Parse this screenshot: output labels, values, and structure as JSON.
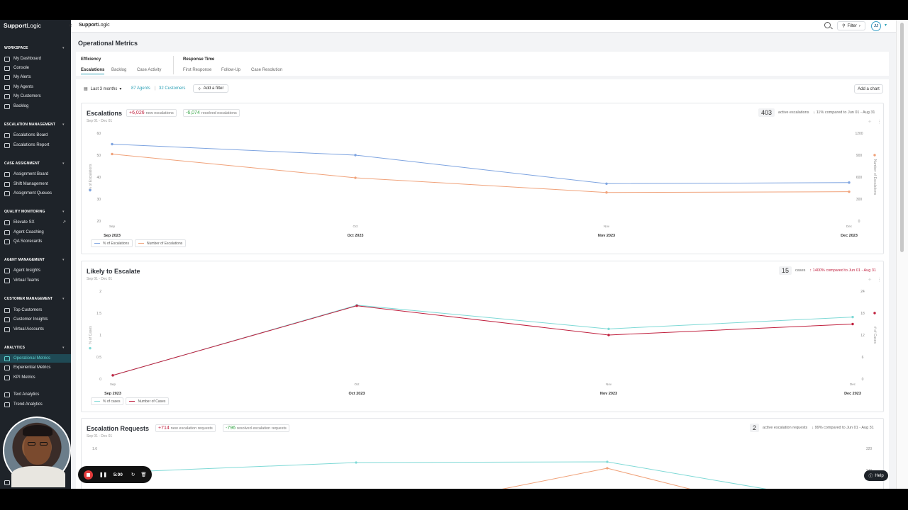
{
  "sidebar": {
    "brand_a": "Support",
    "brand_b": "Logic",
    "sections": [
      {
        "title": "WORKSPACE",
        "items": [
          "My Dashboard",
          "Console",
          "My Alerts",
          "My Agents",
          "My Customers",
          "Backlog"
        ]
      },
      {
        "title": "ESCALATION MANAGEMENT",
        "items": [
          "Escalations Board",
          "Escalations Report"
        ]
      },
      {
        "title": "CASE ASSIGNMENT",
        "items": [
          "Assignment Board",
          "Shift Management",
          "Assignment Queues"
        ]
      },
      {
        "title": "QUALITY MONITORING",
        "items": [
          "Elevate SX",
          "Agent Coaching",
          "QA Scorecards"
        ]
      },
      {
        "title": "AGENT MANAGEMENT",
        "items": [
          "Agent Insights",
          "Virtual Teams"
        ]
      },
      {
        "title": "CUSTOMER MANAGEMENT",
        "items": [
          "Top Customers",
          "Customer Insights",
          "Virtual Accounts"
        ]
      },
      {
        "title": "ANALYTICS",
        "items": [
          "Operational Metrics",
          "Experiential Metrics",
          "KPI Metrics",
          "Text Analytics",
          "Trend Analytics"
        ]
      }
    ],
    "bottom_label": "Co"
  },
  "topbar": {
    "brand_a": "Support",
    "brand_b": "Logic",
    "filter_label": "Filter",
    "avatar": "JJ"
  },
  "page": {
    "title": "Operational Metrics",
    "group_efficiency": "Efficiency",
    "group_response": "Response Time",
    "tabs": [
      "Escalations",
      "Backlog",
      "Case Activity",
      "First Response",
      "Follow-Up",
      "Case Resolution"
    ],
    "range": "Last 3 months",
    "agents": "87 Agents",
    "sep": "|",
    "customers": "32 Customers",
    "add_filter": "Add a filter",
    "add_chart": "Add a chart"
  },
  "charts": [
    {
      "title": "Escalations",
      "subtitle": "Sep 01 - Dec 01",
      "pills": [
        {
          "value": "+6,026",
          "label": "new escalations",
          "tone": "red"
        },
        {
          "value": "-6,074",
          "label": "resolved escalations",
          "tone": "green"
        }
      ],
      "stat_num": "403",
      "stat_label": "active escalations",
      "compare": "↓ 11% compared to Jun 01 - Aug 31",
      "left_axis_label": "% of Escalations",
      "right_axis_label": "Number of Escalations",
      "left_ticks": [
        "60",
        "50",
        "40",
        "30",
        "20"
      ],
      "right_ticks": [
        "1200",
        "900",
        "600",
        "300",
        "0"
      ],
      "legend": [
        "% of Escalations",
        "Number of Escalations"
      ]
    },
    {
      "title": "Likely to Escalate",
      "subtitle": "Sep 01 - Dec 01",
      "pills": [],
      "stat_num": "15",
      "stat_label": "cases",
      "compare": "↑ 1400% compared to Jun 01 - Aug 31",
      "left_axis_label": "% of Cases",
      "right_axis_label": "# of Cases",
      "left_ticks": [
        "2",
        "1.5",
        "1",
        "0.5",
        "0"
      ],
      "right_ticks": [
        "24",
        "18",
        "12",
        "6",
        "0"
      ],
      "legend": [
        "% of cases",
        "Number of Cases"
      ]
    },
    {
      "title": "Escalation Requests",
      "subtitle": "Sep 01 - Dec 01",
      "pills": [
        {
          "value": "+714",
          "label": "new escalation requests",
          "tone": "red"
        },
        {
          "value": "-796",
          "label": "resolved escalation requests",
          "tone": "green"
        }
      ],
      "stat_num": "2",
      "stat_label": "active escalation requests",
      "compare": "↓ 99% compared to Jun 01 - Aug 31",
      "left_ticks": [
        "1.6"
      ],
      "right_ticks": [
        "320",
        "240"
      ]
    }
  ],
  "chart_data": [
    {
      "type": "line",
      "title": "Escalations",
      "categories": [
        "Sep",
        "Oct",
        "Nov",
        "Dec"
      ],
      "category_labels": [
        "Sep 2023",
        "Oct 2023",
        "Nov 2023",
        "Dec 2023"
      ],
      "ylim_left": [
        20,
        60
      ],
      "ylim_right": [
        0,
        1200
      ],
      "series": [
        {
          "name": "% of Escalations",
          "axis": "left",
          "color": "#7ea4e0",
          "values": [
            55,
            50,
            37,
            37.5
          ]
        },
        {
          "name": "Number of Escalations",
          "axis": "right",
          "color": "#f0a27a",
          "values": [
            915,
            590,
            390,
            400
          ]
        }
      ]
    },
    {
      "type": "line",
      "title": "Likely to Escalate",
      "categories": [
        "Sep",
        "Oct",
        "Nov",
        "Dec"
      ],
      "category_labels": [
        "Sep 2023",
        "Oct 2023",
        "Nov 2023",
        "Dec 2023"
      ],
      "ylim_left": [
        0,
        2
      ],
      "ylim_right": [
        0,
        24
      ],
      "series": [
        {
          "name": "% of cases",
          "axis": "left",
          "color": "#7fd9d6",
          "values": [
            0.08,
            1.68,
            1.14,
            1.41
          ]
        },
        {
          "name": "Number of Cases",
          "axis": "right",
          "color": "#c0203e",
          "values": [
            1,
            20,
            12,
            15
          ]
        }
      ]
    }
  ],
  "recorder": {
    "time": "5:00"
  },
  "help": "Help"
}
